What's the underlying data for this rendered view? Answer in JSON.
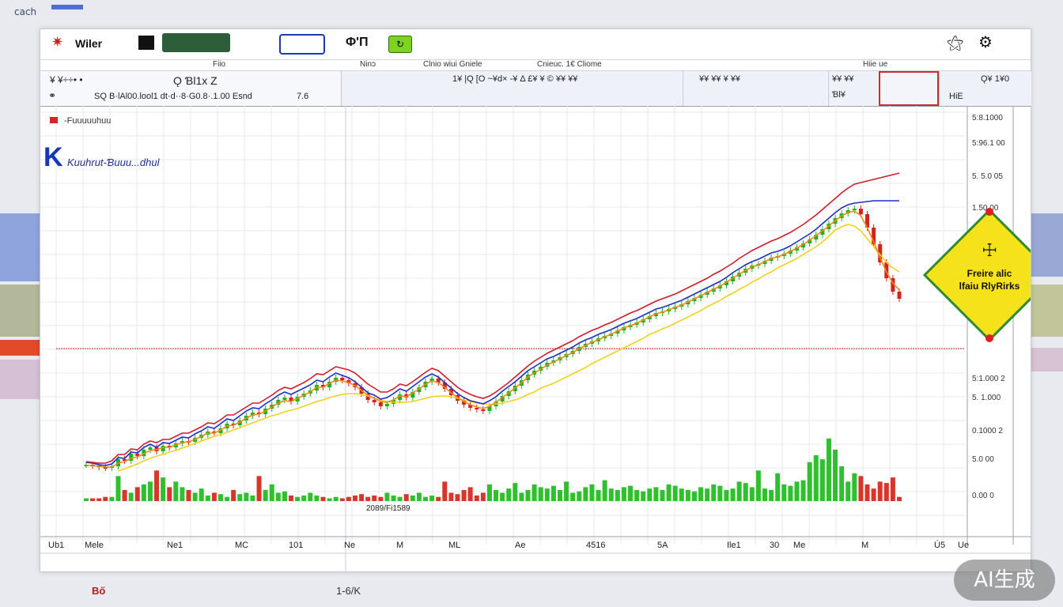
{
  "page": {
    "corner_label": "cach",
    "bottom_left_text": "Bő",
    "bottom_center_text": "1-6/K",
    "watermark": "AI生成"
  },
  "window": {
    "title": "Wiler",
    "quick_label": "Φ'Π",
    "quick_badge": "↻"
  },
  "menu": [
    "Ninɔ",
    "Fiio",
    "Clnio wiui Gniele",
    "Cnieuc. 1€ Cliome",
    "Hiie ue"
  ],
  "infobar": {
    "symbol": "Ǫ Ɓl1x Z",
    "left_label": "¥ ¥÷÷• •",
    "price_line": "SQ B·lAl00.lool1 dt·d··8·G0.8·.1.00 Esnd",
    "price_tail": "7.6",
    "mid_text": "1¥ |Q [O ~¥d× -¥ Δ £¥ ¥ © ¥¥ ¥¥",
    "right_text": "¥¥ ¥¥ ¥ ¥¥",
    "far_right_a": "¥¥ ¥¥",
    "far_right_b": "Ɓl¥",
    "far_right_c": "Ǫ¥ 1¥0",
    "hie": "HiE"
  },
  "chart_data": {
    "type": "line",
    "title": "K",
    "subtitle": "Kuuhrut-Ɓuuu...dhul",
    "legend_label": "-Fuuuuuhuu",
    "warning_text": [
      "Freire alic",
      "lfaiu RlyRirks"
    ],
    "volume_label": "2089/Fi1589",
    "ylabels": [
      "5:8.1000",
      "5:96.1 00",
      "5. 5.0 05",
      "1.50.00",
      "5:1.000 2",
      "5. 1.000",
      "0.1000 2",
      "5.0 00",
      "0.00 0"
    ],
    "xlabels": [
      "Ub1",
      "Mele",
      "Ne1",
      "MC",
      "101",
      "Ne",
      "M",
      "ML",
      "Ae",
      "4516",
      "5A",
      "Ile1",
      "30",
      "Me",
      "M",
      "Ú5",
      "Ue"
    ],
    "price": [
      96,
      95,
      93,
      92,
      94,
      103,
      101,
      110,
      107,
      115,
      118,
      113,
      120,
      118,
      123,
      126,
      125,
      130,
      134,
      138,
      136,
      142,
      148,
      146,
      152,
      158,
      162,
      160,
      167,
      172,
      178,
      181,
      176,
      182,
      186,
      190,
      197,
      194,
      201,
      206,
      203,
      199,
      194,
      186,
      178,
      175,
      170,
      173,
      178,
      185,
      181,
      188,
      194,
      201,
      205,
      200,
      192,
      184,
      177,
      172,
      168,
      166,
      164,
      170,
      176,
      183,
      189,
      196,
      203,
      210,
      215,
      220,
      225,
      228,
      232,
      236,
      240,
      245,
      249,
      252,
      256,
      259,
      262,
      266,
      270,
      273,
      276,
      280,
      284,
      288,
      290,
      293,
      296,
      299,
      303,
      307,
      311,
      315,
      319,
      323,
      328,
      334,
      339,
      344,
      348,
      350,
      354,
      358,
      360,
      363,
      367,
      371,
      376,
      381,
      387,
      394,
      401,
      408,
      414,
      418,
      420,
      413,
      396,
      375,
      352,
      332,
      315,
      306
    ],
    "ma_yellow": [
      null,
      null,
      null,
      null,
      null,
      88,
      91,
      94,
      97,
      101,
      104,
      107,
      109,
      112,
      114,
      117,
      120,
      123,
      126,
      129,
      132,
      134,
      137,
      140,
      143,
      146,
      149,
      152,
      155,
      158,
      160,
      163,
      165,
      167,
      170,
      173,
      176,
      178,
      181,
      183,
      185,
      186,
      186,
      185,
      183,
      180,
      178,
      176,
      175,
      175,
      175,
      176,
      178,
      180,
      182,
      183,
      183,
      182,
      180,
      178,
      176,
      174,
      173,
      172,
      173,
      174,
      176,
      178,
      181,
      185,
      188,
      193,
      196,
      199,
      203,
      207,
      211,
      215,
      219,
      224,
      228,
      232,
      236,
      240,
      244,
      248,
      252,
      256,
      261,
      264,
      268,
      271,
      275,
      279,
      283,
      287,
      291,
      296,
      300,
      304,
      309,
      313,
      318,
      322,
      327,
      331,
      336,
      340,
      345,
      349,
      353,
      357,
      362,
      367,
      372,
      378,
      385,
      393,
      397,
      400,
      398,
      392,
      382,
      372,
      362,
      352,
      345,
      340
    ],
    "ma_orange": [
      95,
      95,
      94,
      93,
      93,
      98,
      100,
      104,
      106,
      110,
      114,
      115,
      118,
      118,
      121,
      124,
      125,
      128,
      132,
      136,
      136,
      140,
      145,
      146,
      150,
      155,
      159,
      160,
      164,
      169,
      174,
      177,
      176,
      180,
      184,
      188,
      194,
      194,
      199,
      203,
      202,
      200,
      196,
      190,
      184,
      180,
      176,
      175,
      178,
      183,
      182,
      187,
      192,
      198,
      202,
      200,
      194,
      187,
      181,
      176,
      172,
      169,
      167,
      170,
      175,
      181,
      187,
      193,
      200,
      207,
      212,
      217,
      222,
      226,
      230,
      234,
      238,
      243,
      247,
      251,
      254,
      258,
      261,
      265,
      269,
      272,
      275,
      279,
      283,
      287,
      289,
      292,
      295,
      298,
      302,
      306,
      310,
      314,
      318,
      322,
      327,
      332,
      337,
      342,
      346,
      349,
      353,
      357,
      359,
      362,
      366,
      370,
      375,
      380,
      386,
      392,
      398,
      405,
      411,
      415,
      417,
      411,
      396,
      378,
      358,
      340,
      326,
      317
    ],
    "ma_blue": [
      99,
      98,
      96,
      95,
      97,
      105,
      104,
      112,
      111,
      118,
      122,
      118,
      124,
      123,
      127,
      131,
      130,
      135,
      139,
      144,
      142,
      148,
      154,
      152,
      158,
      164,
      168,
      167,
      173,
      178,
      184,
      188,
      185,
      189,
      193,
      197,
      203,
      201,
      207,
      212,
      209,
      206,
      201,
      194,
      187,
      184,
      179,
      181,
      186,
      192,
      189,
      195,
      201,
      207,
      211,
      207,
      200,
      193,
      186,
      181,
      177,
      175,
      173,
      177,
      182,
      189,
      195,
      201,
      208,
      215,
      220,
      225,
      230,
      233,
      237,
      241,
      245,
      250,
      254,
      257,
      261,
      264,
      267,
      271,
      275,
      278,
      281,
      285,
      289,
      293,
      295,
      298,
      301,
      304,
      308,
      312,
      316,
      320,
      324,
      328,
      333,
      339,
      344,
      349,
      353,
      356,
      360,
      364,
      366,
      369,
      373,
      378,
      383,
      388,
      394,
      401,
      408,
      415,
      421,
      425,
      427,
      428,
      429,
      430,
      430,
      430,
      430,
      430
    ],
    "ma_red": [
      100,
      99,
      98,
      98,
      101,
      109,
      109,
      116,
      115,
      122,
      126,
      124,
      128,
      128,
      132,
      136,
      136,
      140,
      144,
      149,
      148,
      153,
      159,
      159,
      164,
      169,
      174,
      174,
      179,
      184,
      190,
      194,
      192,
      196,
      200,
      205,
      211,
      210,
      215,
      220,
      218,
      216,
      212,
      205,
      198,
      193,
      188,
      188,
      192,
      198,
      196,
      201,
      207,
      213,
      218,
      215,
      208,
      201,
      194,
      189,
      185,
      182,
      180,
      183,
      188,
      194,
      200,
      207,
      214,
      221,
      227,
      232,
      237,
      241,
      245,
      249,
      253,
      258,
      262,
      266,
      269,
      273,
      276,
      280,
      284,
      288,
      291,
      295,
      299,
      303,
      306,
      309,
      312,
      316,
      320,
      324,
      328,
      332,
      337,
      341,
      346,
      351,
      357,
      362,
      367,
      371,
      375,
      379,
      382,
      386,
      390,
      395,
      400,
      406,
      412,
      419,
      426,
      433,
      440,
      446,
      451,
      453,
      455,
      457,
      459,
      461,
      463,
      465
    ],
    "volume": [
      2,
      2,
      2,
      3,
      3,
      18,
      8,
      6,
      10,
      12,
      14,
      22,
      17,
      10,
      14,
      10,
      8,
      6,
      9,
      4,
      6,
      5,
      3,
      8,
      5,
      6,
      4,
      18,
      8,
      12,
      6,
      7,
      4,
      3,
      4,
      6,
      4,
      3,
      2,
      3,
      2,
      3,
      4,
      5,
      3,
      4,
      3,
      6,
      4,
      3,
      5,
      4,
      6,
      3,
      4,
      3,
      14,
      6,
      5,
      8,
      10,
      4,
      6,
      12,
      8,
      6,
      9,
      13,
      6,
      8,
      12,
      10,
      9,
      11,
      8,
      14,
      6,
      7,
      10,
      12,
      8,
      15,
      9,
      8,
      10,
      11,
      8,
      7,
      9,
      10,
      8,
      12,
      11,
      9,
      8,
      7,
      10,
      9,
      12,
      11,
      8,
      9,
      14,
      13,
      10,
      22,
      9,
      8,
      20,
      12,
      11,
      14,
      15,
      28,
      33,
      30,
      45,
      37,
      25,
      14,
      20,
      18,
      12,
      9,
      14,
      13,
      17,
      3
    ],
    "ylim": [
      60,
      520
    ],
    "vlim": [
      0,
      50
    ],
    "hline": 243
  }
}
